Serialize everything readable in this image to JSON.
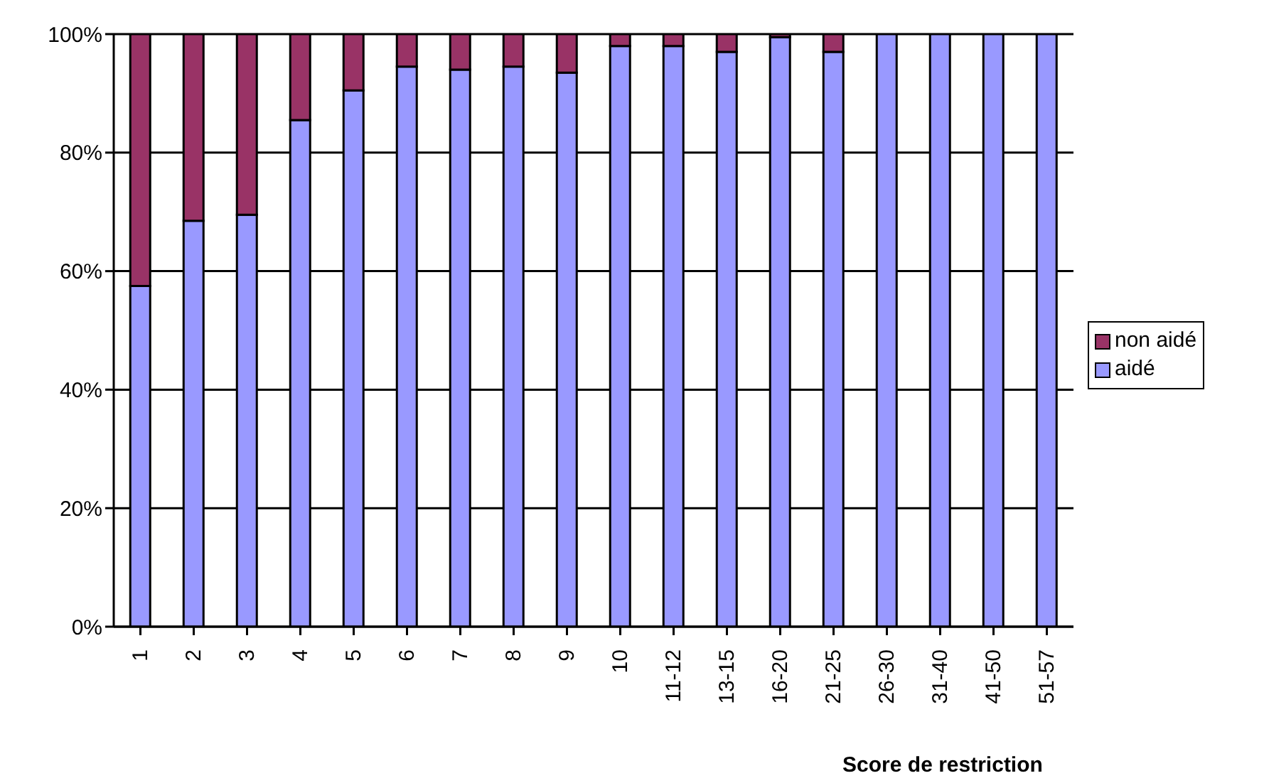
{
  "chart_data": {
    "type": "bar",
    "stacked": true,
    "xlabel": "Score de restriction",
    "categories": [
      "1",
      "2",
      "3",
      "4",
      "5",
      "6",
      "7",
      "8",
      "9",
      "10",
      "11-12",
      "13-15",
      "16-20",
      "21-25",
      "26-30",
      "31-40",
      "41-50",
      "51-57"
    ],
    "series": [
      {
        "name": "aidé",
        "color": "#9999ff",
        "values": [
          57.5,
          68.5,
          69.5,
          85.5,
          90.5,
          94.5,
          94,
          94.5,
          93.5,
          98,
          98,
          97,
          99.5,
          97,
          100,
          100,
          100,
          100
        ]
      },
      {
        "name": "non aidé",
        "color": "#993366",
        "values": [
          42.5,
          31.5,
          30.5,
          14.5,
          9.5,
          5.5,
          6,
          5.5,
          6.5,
          2,
          2,
          3,
          0.5,
          3,
          0,
          0,
          0,
          0
        ]
      }
    ],
    "ylim": [
      0,
      100
    ],
    "yticks": [
      {
        "value": 0,
        "label": "0%"
      },
      {
        "value": 20,
        "label": "20%"
      },
      {
        "value": 40,
        "label": "40%"
      },
      {
        "value": 60,
        "label": "60%"
      },
      {
        "value": 80,
        "label": "80%"
      },
      {
        "value": 100,
        "label": "100%"
      }
    ],
    "grid": "y",
    "legend": "right"
  }
}
